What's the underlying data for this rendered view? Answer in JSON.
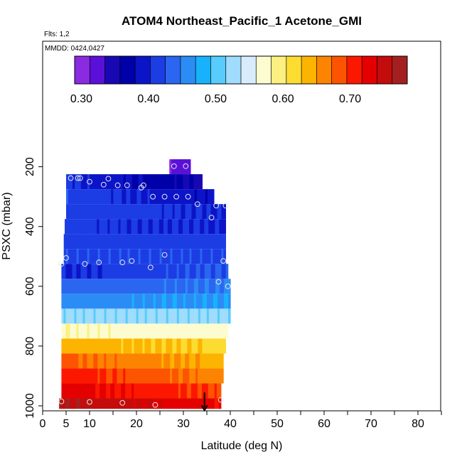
{
  "chart_data": {
    "type": "heatmap",
    "title": "ATOM4 Northeast_Pacific_1 Acetone_GMI",
    "annotations": {
      "flights": "Flts: 1,2",
      "dates": "MMDD: 0424,0427"
    },
    "xlabel": "Latitude (deg N)",
    "ylabel": "PSXC (mbar)",
    "xlim": [
      0,
      85
    ],
    "ylim": [
      1000,
      125
    ],
    "y_inverted": true,
    "x_ticks": [
      0,
      5,
      10,
      20,
      30,
      40,
      50,
      60,
      70,
      80
    ],
    "y_ticks": [
      200,
      400,
      600,
      800,
      1000
    ],
    "colorbar": {
      "range": [
        0.29,
        0.785
      ],
      "tick_values": [
        0.3,
        0.4,
        0.5,
        0.6,
        0.7
      ],
      "tick_labels": [
        "0.30",
        "0.40",
        "0.50",
        "0.60",
        "0.70"
      ],
      "colors": [
        "#8a2be2",
        "#5a10d8",
        "#1808b4",
        "#0000a8",
        "#0c14c8",
        "#1c3ce4",
        "#2a66f0",
        "#2c8cf6",
        "#18b2fc",
        "#58ccfc",
        "#a0dcfc",
        "#d8ecfc",
        "#fcfcd0",
        "#fcf080",
        "#fcdc30",
        "#fcb400",
        "#fc8400",
        "#fc5400",
        "#fc1800",
        "#e40000",
        "#c40c0c",
        "#a42020"
      ]
    },
    "curtain": [
      {
        "p_top": 175,
        "p_bot": 225,
        "x_start": 27,
        "x_end": 31.5,
        "v_start": 0.31,
        "v_end": 0.33
      },
      {
        "p_top": 225,
        "p_bot": 275,
        "x_start": 5,
        "x_end": 34,
        "v_start": 0.41,
        "v_end": 0.35
      },
      {
        "p_top": 275,
        "p_bot": 325,
        "x_start": 5,
        "x_end": 36.5,
        "v_start": 0.42,
        "v_end": 0.38
      },
      {
        "p_top": 325,
        "p_bot": 375,
        "x_start": 5,
        "x_end": 39,
        "v_start": 0.42,
        "v_end": 0.4
      },
      {
        "p_top": 375,
        "p_bot": 425,
        "x_start": 4.7,
        "x_end": 39,
        "v_start": 0.41,
        "v_end": 0.4
      },
      {
        "p_top": 425,
        "p_bot": 475,
        "x_start": 4.5,
        "x_end": 39,
        "v_start": 0.41,
        "v_end": 0.41
      },
      {
        "p_top": 475,
        "p_bot": 525,
        "x_start": 4.5,
        "x_end": 39,
        "v_start": 0.42,
        "v_end": 0.42
      },
      {
        "p_top": 525,
        "p_bot": 575,
        "x_start": 4,
        "x_end": 39.5,
        "v_start": 0.4,
        "v_end": 0.43
      },
      {
        "p_top": 575,
        "p_bot": 625,
        "x_start": 4,
        "x_end": 40,
        "v_start": 0.43,
        "v_end": 0.45
      },
      {
        "p_top": 625,
        "p_bot": 675,
        "x_start": 4,
        "x_end": 40,
        "v_start": 0.46,
        "v_end": 0.47
      },
      {
        "p_top": 675,
        "p_bot": 725,
        "x_start": 4,
        "x_end": 40,
        "v_start": 0.52,
        "v_end": 0.52
      },
      {
        "p_top": 725,
        "p_bot": 775,
        "x_start": 4,
        "x_end": 39.5,
        "v_start": 0.58,
        "v_end": 0.57
      },
      {
        "p_top": 775,
        "p_bot": 825,
        "x_start": 4,
        "x_end": 39,
        "v_start": 0.64,
        "v_end": 0.62
      },
      {
        "p_top": 825,
        "p_bot": 875,
        "x_start": 4,
        "x_end": 38.5,
        "v_start": 0.68,
        "v_end": 0.64
      },
      {
        "p_top": 875,
        "p_bot": 925,
        "x_start": 4,
        "x_end": 38.5,
        "v_start": 0.71,
        "v_end": 0.66
      },
      {
        "p_top": 925,
        "p_bot": 975,
        "x_start": 4,
        "x_end": 38,
        "v_start": 0.73,
        "v_end": 0.69
      },
      {
        "p_top": 975,
        "p_bot": 1010,
        "x_start": 3.5,
        "x_end": 38,
        "v_start": 0.765,
        "v_end": 0.72
      }
    ],
    "observations": [
      {
        "lat": 28,
        "p": 198
      },
      {
        "lat": 30.5,
        "p": 198
      },
      {
        "lat": 6,
        "p": 238
      },
      {
        "lat": 7.5,
        "p": 238
      },
      {
        "lat": 8,
        "p": 238
      },
      {
        "lat": 10,
        "p": 250
      },
      {
        "lat": 13,
        "p": 260
      },
      {
        "lat": 14,
        "p": 240
      },
      {
        "lat": 16,
        "p": 262
      },
      {
        "lat": 18,
        "p": 262
      },
      {
        "lat": 21,
        "p": 270
      },
      {
        "lat": 21.5,
        "p": 262
      },
      {
        "lat": 23.5,
        "p": 300
      },
      {
        "lat": 26,
        "p": 300
      },
      {
        "lat": 28.5,
        "p": 300
      },
      {
        "lat": 31,
        "p": 300
      },
      {
        "lat": 33,
        "p": 325
      },
      {
        "lat": 37,
        "p": 330
      },
      {
        "lat": 39,
        "p": 330
      },
      {
        "lat": 36,
        "p": 370
      },
      {
        "lat": 4,
        "p": 525
      },
      {
        "lat": 5,
        "p": 505
      },
      {
        "lat": 9,
        "p": 525
      },
      {
        "lat": 12,
        "p": 520
      },
      {
        "lat": 17,
        "p": 520
      },
      {
        "lat": 19,
        "p": 515
      },
      {
        "lat": 23,
        "p": 537
      },
      {
        "lat": 26,
        "p": 495
      },
      {
        "lat": 38.5,
        "p": 515
      },
      {
        "lat": 37.5,
        "p": 585
      },
      {
        "lat": 39.5,
        "p": 600
      },
      {
        "lat": 4,
        "p": 985
      },
      {
        "lat": 10,
        "p": 987
      },
      {
        "lat": 17,
        "p": 990
      },
      {
        "lat": 24,
        "p": 997
      },
      {
        "lat": 38,
        "p": 980
      }
    ],
    "marker": {
      "lat": 34.5,
      "p_from": 955,
      "p_to": 1015
    }
  }
}
